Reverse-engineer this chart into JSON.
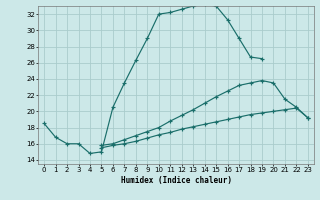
{
  "title": "",
  "xlabel": "Humidex (Indice chaleur)",
  "bg_color": "#cce8e8",
  "grid_color": "#aacccc",
  "line_color": "#1a6e6a",
  "xlim": [
    -0.5,
    23.5
  ],
  "ylim": [
    13.5,
    33.0
  ],
  "xticks": [
    0,
    1,
    2,
    3,
    4,
    5,
    6,
    7,
    8,
    9,
    10,
    11,
    12,
    13,
    14,
    15,
    16,
    17,
    18,
    19,
    20,
    21,
    22,
    23
  ],
  "yticks": [
    14,
    16,
    18,
    20,
    22,
    24,
    26,
    28,
    30,
    32
  ],
  "line1_x": [
    0,
    1,
    2,
    3,
    4,
    5,
    6,
    7,
    8,
    9,
    10,
    11,
    12,
    13,
    14,
    15,
    16,
    17,
    18,
    19
  ],
  "line1_y": [
    18.5,
    16.8,
    16.0,
    16.0,
    14.8,
    15.0,
    20.5,
    23.5,
    26.3,
    29.0,
    32.0,
    32.2,
    32.6,
    33.0,
    33.2,
    33.0,
    31.3,
    29.0,
    26.7,
    26.5
  ],
  "line2_x": [
    5,
    6,
    7,
    8,
    9,
    10,
    11,
    12,
    13,
    14,
    15,
    16,
    17,
    18,
    19,
    20,
    21,
    22,
    23
  ],
  "line2_y": [
    15.8,
    16.0,
    16.5,
    17.0,
    17.5,
    18.0,
    18.8,
    19.5,
    20.2,
    21.0,
    21.8,
    22.5,
    23.2,
    23.5,
    23.8,
    23.5,
    21.5,
    20.5,
    19.2
  ],
  "line3_x": [
    5,
    6,
    7,
    8,
    9,
    10,
    11,
    12,
    13,
    14,
    15,
    16,
    17,
    18,
    19,
    20,
    21,
    22,
    23
  ],
  "line3_y": [
    15.5,
    15.8,
    16.0,
    16.3,
    16.7,
    17.1,
    17.4,
    17.8,
    18.1,
    18.4,
    18.7,
    19.0,
    19.3,
    19.6,
    19.8,
    20.0,
    20.2,
    20.4,
    19.2
  ]
}
